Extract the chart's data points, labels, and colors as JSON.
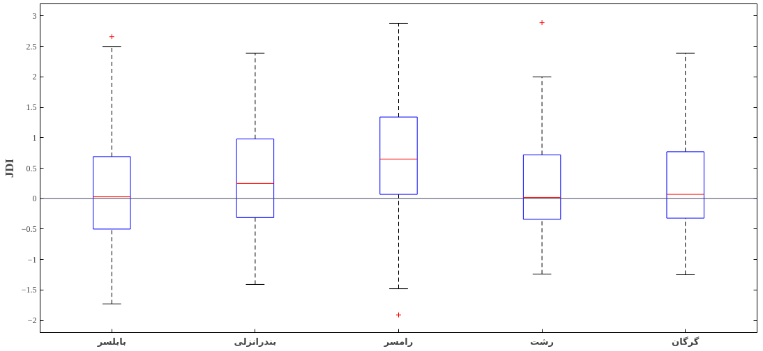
{
  "chart_data": {
    "type": "box",
    "ylabel": "JDI",
    "categories": [
      "بابلسر",
      "بندرانزلی",
      "رامسر",
      "رشت",
      "گرگان"
    ],
    "ylim": [
      -2.2,
      3.2
    ],
    "yticks": [
      -2,
      -1.5,
      -1,
      -0.5,
      0,
      0.5,
      1,
      1.5,
      2,
      2.5,
      3
    ],
    "grid": false,
    "marker": "cross",
    "series": [
      {
        "color": "#0000ff",
        "boxes": [
          {
            "low": -1.73,
            "q1": -0.5,
            "median": 0.03,
            "q3": 0.69,
            "high": 2.5,
            "outliers": [
              2.66
            ]
          },
          {
            "low": -1.41,
            "q1": -0.31,
            "median": 0.25,
            "q3": 0.98,
            "high": 2.39
          },
          {
            "low": -1.48,
            "q1": 0.07,
            "median": 0.65,
            "q3": 1.34,
            "high": 2.88,
            "outliers": [
              -1.91
            ]
          },
          {
            "low": -1.24,
            "q1": -0.34,
            "median": 0.02,
            "q3": 0.72,
            "high": 2.0,
            "outliers": [
              2.89
            ]
          },
          {
            "low": -1.25,
            "q1": -0.32,
            "median": 0.07,
            "q3": 0.77,
            "high": 2.39
          }
        ]
      }
    ],
    "ref_lines": [
      {
        "axis": "y",
        "value": 0,
        "color": "#404060"
      }
    ]
  }
}
